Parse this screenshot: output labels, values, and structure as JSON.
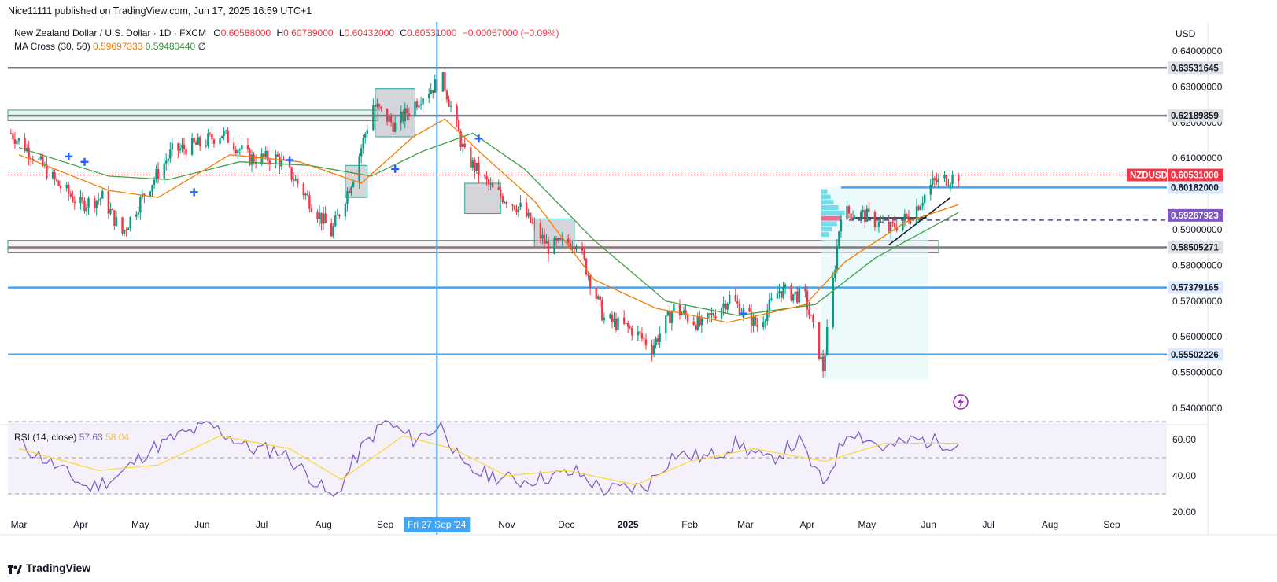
{
  "header": {
    "publisher": "Nice11111 published on TradingView.com, Jun 17, 2025 16:59 UTC+1"
  },
  "legend": {
    "symbol": "New Zealand Dollar / U.S. Dollar · 1D · FXCM",
    "o_label": "O",
    "o_value": "0.60588000",
    "h_label": "H",
    "h_value": "0.60789000",
    "l_label": "L",
    "l_value": "0.60432000",
    "c_label": "C",
    "c_value": "0.60531000",
    "change": "−0.00057000 (−0.09%)",
    "ma_label": "MA Cross (30, 50)",
    "ma30": "0.59697333",
    "ma50": "0.59480440",
    "ma_extra": "∅"
  },
  "rsi_legend": {
    "label": "RSI (14, close)",
    "rsi": "57.63",
    "rsi_ma": "58.04"
  },
  "price_axis": {
    "currency": "USD",
    "ticks": [
      "0.64000000",
      "0.63000000",
      "0.62000000",
      "0.61000000",
      "0.59000000",
      "0.58000000",
      "0.57000000",
      "0.56000000",
      "0.55000000",
      "0.54000000"
    ]
  },
  "badges": {
    "resistance_top": "0.63531645",
    "resistance_2": "0.62189859",
    "ticker": "NZDUSD",
    "last_price": "0.60531000",
    "level_blue": "0.60182000",
    "level_dashed": "0.59267923",
    "level_grey": "0.58505271",
    "support_1": "0.57379165",
    "support_2": "0.55502226"
  },
  "rsi_axis": {
    "ticks": [
      "60.00",
      "40.00",
      "20.00"
    ]
  },
  "time_axis": {
    "labels": [
      "Mar",
      "Apr",
      "May",
      "Jun",
      "Jul",
      "Aug",
      "Sep",
      "Nov",
      "Dec",
      "2025",
      "Feb",
      "Mar",
      "Apr",
      "May",
      "Jun",
      "Jul",
      "Aug",
      "Sep"
    ],
    "crosshair_label": "Fri 27 Sep '24"
  },
  "footer": {
    "brand": "TradingView"
  },
  "colors": {
    "up": "#089981",
    "down": "#f23645",
    "ma30": "#f57c00",
    "ma50": "#43a047",
    "blue_line": "#2962ff",
    "grey_line": "#787b86",
    "rsi": "#7e57c2",
    "rsi_ma": "#fdd835"
  },
  "chart_data": [
    {
      "type": "candlestick",
      "title": "New Zealand Dollar / U.S. Dollar · 1D · FXCM",
      "x_range": [
        "2024-03",
        "2025-09"
      ],
      "ylim": [
        0.54,
        0.645
      ],
      "ohlc_last": {
        "open": 0.60588,
        "high": 0.60789,
        "low": 0.60432,
        "close": 0.60531
      },
      "horizontal_levels": [
        0.63531645,
        0.62189859,
        0.60531,
        0.60182,
        0.59267923,
        0.58505271,
        0.57379165,
        0.55502226
      ],
      "close_path": [
        [
          "2024-02-26",
          0.617
        ],
        [
          "2024-03-08",
          0.611
        ],
        [
          "2024-03-20",
          0.603
        ],
        [
          "2024-04-01",
          0.597
        ],
        [
          "2024-04-12",
          0.599
        ],
        [
          "2024-04-22",
          0.589
        ],
        [
          "2024-05-03",
          0.6
        ],
        [
          "2024-05-17",
          0.612
        ],
        [
          "2024-05-31",
          0.614
        ],
        [
          "2024-06-11",
          0.617
        ],
        [
          "2024-06-25",
          0.61
        ],
        [
          "2024-07-09",
          0.61
        ],
        [
          "2024-07-19",
          0.603
        ],
        [
          "2024-08-05",
          0.589
        ],
        [
          "2024-08-16",
          0.605
        ],
        [
          "2024-08-26",
          0.625
        ],
        [
          "2024-09-06",
          0.619
        ],
        [
          "2024-09-20",
          0.628
        ],
        [
          "2024-09-30",
          0.632
        ],
        [
          "2024-10-11",
          0.611
        ],
        [
          "2024-10-25",
          0.601
        ],
        [
          "2024-11-08",
          0.596
        ],
        [
          "2024-11-22",
          0.585
        ],
        [
          "2024-12-06",
          0.587
        ],
        [
          "2024-12-20",
          0.565
        ],
        [
          "2025-01-03",
          0.562
        ],
        [
          "2025-01-13",
          0.557
        ],
        [
          "2025-01-24",
          0.568
        ],
        [
          "2025-02-07",
          0.563
        ],
        [
          "2025-02-21",
          0.571
        ],
        [
          "2025-03-07",
          0.563
        ],
        [
          "2025-03-18",
          0.573
        ],
        [
          "2025-03-31",
          0.571
        ],
        [
          "2025-04-09",
          0.551
        ],
        [
          "2025-04-18",
          0.595
        ],
        [
          "2025-04-30",
          0.594
        ],
        [
          "2025-05-12",
          0.59
        ],
        [
          "2025-05-23",
          0.594
        ],
        [
          "2025-06-03",
          0.603
        ],
        [
          "2025-06-16",
          0.6053
        ]
      ],
      "ma30": [
        [
          "2024-03-01",
          0.611
        ],
        [
          "2024-04-15",
          0.601
        ],
        [
          "2024-05-10",
          0.599
        ],
        [
          "2024-06-15",
          0.611
        ],
        [
          "2024-07-20",
          0.609
        ],
        [
          "2024-08-20",
          0.603
        ],
        [
          "2024-09-15",
          0.616
        ],
        [
          "2024-10-01",
          0.621
        ],
        [
          "2024-10-20",
          0.611
        ],
        [
          "2024-11-15",
          0.598
        ],
        [
          "2024-12-15",
          0.576
        ],
        [
          "2025-01-15",
          0.568
        ],
        [
          "2025-02-20",
          0.564
        ],
        [
          "2025-03-31",
          0.569
        ],
        [
          "2025-04-20",
          0.581
        ],
        [
          "2025-05-20",
          0.592
        ],
        [
          "2025-06-16",
          0.597
        ]
      ],
      "ma50": [
        [
          "2024-03-01",
          0.613
        ],
        [
          "2024-04-15",
          0.605
        ],
        [
          "2024-05-15",
          0.604
        ],
        [
          "2024-06-20",
          0.609
        ],
        [
          "2024-07-25",
          0.608
        ],
        [
          "2024-08-25",
          0.605
        ],
        [
          "2024-09-20",
          0.612
        ],
        [
          "2024-10-15",
          0.617
        ],
        [
          "2024-11-10",
          0.607
        ],
        [
          "2024-12-15",
          0.587
        ],
        [
          "2025-01-20",
          0.57
        ],
        [
          "2025-02-25",
          0.566
        ],
        [
          "2025-04-05",
          0.569
        ],
        [
          "2025-05-05",
          0.582
        ],
        [
          "2025-06-16",
          0.5948
        ]
      ]
    },
    {
      "type": "line",
      "title": "RSI (14, close)",
      "ylim": [
        20,
        80
      ],
      "bands": [
        30,
        50,
        70
      ],
      "series": [
        {
          "name": "RSI",
          "values": [
            [
              "2024-03-01",
              58
            ],
            [
              "2024-03-20",
              45
            ],
            [
              "2024-04-05",
              33
            ],
            [
              "2024-04-20",
              40
            ],
            [
              "2024-05-05",
              54
            ],
            [
              "2024-05-20",
              62
            ],
            [
              "2024-06-05",
              68
            ],
            [
              "2024-06-25",
              55
            ],
            [
              "2024-07-10",
              54
            ],
            [
              "2024-07-25",
              40
            ],
            [
              "2024-08-06",
              27
            ],
            [
              "2024-08-20",
              55
            ],
            [
              "2024-09-01",
              70
            ],
            [
              "2024-09-15",
              60
            ],
            [
              "2024-09-30",
              68
            ],
            [
              "2024-10-10",
              44
            ],
            [
              "2024-10-25",
              40
            ],
            [
              "2024-11-08",
              37
            ],
            [
              "2024-11-25",
              40
            ],
            [
              "2024-12-06",
              42
            ],
            [
              "2024-12-20",
              32
            ],
            [
              "2025-01-10",
              34
            ],
            [
              "2025-01-24",
              52
            ],
            [
              "2025-02-10",
              50
            ],
            [
              "2025-02-25",
              58
            ],
            [
              "2025-03-12",
              48
            ],
            [
              "2025-03-28",
              59
            ],
            [
              "2025-04-09",
              35
            ],
            [
              "2025-04-22",
              66
            ],
            [
              "2025-05-10",
              55
            ],
            [
              "2025-05-25",
              60
            ],
            [
              "2025-06-16",
              57.63
            ]
          ]
        },
        {
          "name": "RSI MA",
          "values": [
            [
              "2024-03-01",
              55
            ],
            [
              "2024-04-10",
              43
            ],
            [
              "2024-05-10",
              46
            ],
            [
              "2024-06-10",
              62
            ],
            [
              "2024-07-15",
              55
            ],
            [
              "2024-08-10",
              38
            ],
            [
              "2024-09-10",
              62
            ],
            [
              "2024-10-05",
              55
            ],
            [
              "2024-11-01",
              40
            ],
            [
              "2024-12-01",
              43
            ],
            [
              "2025-01-05",
              35
            ],
            [
              "2025-02-01",
              48
            ],
            [
              "2025-03-05",
              55
            ],
            [
              "2025-04-10",
              48
            ],
            [
              "2025-05-10",
              58
            ],
            [
              "2025-06-16",
              58.04
            ]
          ]
        }
      ]
    }
  ]
}
